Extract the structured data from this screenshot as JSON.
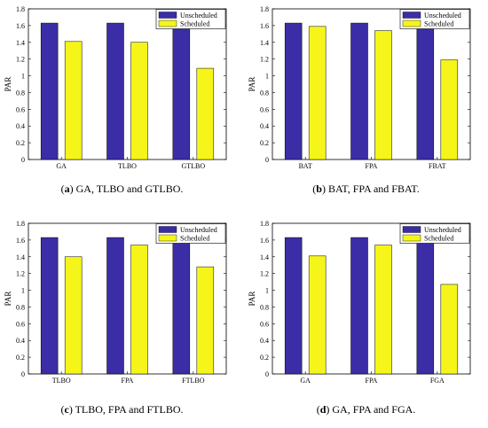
{
  "colors": {
    "unscheduled": "#3a2da6",
    "scheduled": "#f5f51a",
    "axis": "#000000"
  },
  "chart_data": [
    {
      "type": "bar",
      "ylabel": "PAR",
      "ylim": [
        0,
        1.8
      ],
      "yticks": [
        "0",
        "0.2",
        "0.4",
        "0.6",
        "0.8",
        "1",
        "1.2",
        "1.4",
        "1.6",
        "1.8"
      ],
      "categories": [
        "GA",
        "TLBO",
        "GTLBO"
      ],
      "series": [
        {
          "name": "Unscheduled",
          "values": [
            1.63,
            1.63,
            1.63
          ]
        },
        {
          "name": "Scheduled",
          "values": [
            1.41,
            1.4,
            1.09
          ]
        }
      ],
      "legend": "top-right",
      "caption_tag": "a",
      "caption_text": "GA, TLBO and GTLBO."
    },
    {
      "type": "bar",
      "ylabel": "PAR",
      "ylim": [
        0,
        1.8
      ],
      "yticks": [
        "0",
        "0.2",
        "0.4",
        "0.6",
        "0.8",
        "1",
        "1.2",
        "1.4",
        "1.6",
        "1.8"
      ],
      "categories": [
        "BAT",
        "FPA",
        "FBAT"
      ],
      "series": [
        {
          "name": "Unscheduled",
          "values": [
            1.63,
            1.63,
            1.63
          ]
        },
        {
          "name": "Scheduled",
          "values": [
            1.59,
            1.54,
            1.19
          ]
        }
      ],
      "legend": "top-right",
      "caption_tag": "b",
      "caption_text": "BAT, FPA and FBAT."
    },
    {
      "type": "bar",
      "ylabel": "PAR",
      "ylim": [
        0,
        1.8
      ],
      "yticks": [
        "0",
        "0.2",
        "0.4",
        "0.6",
        "0.8",
        "1",
        "1.2",
        "1.4",
        "1.6",
        "1.8"
      ],
      "categories": [
        "TLBO",
        "FPA",
        "FTLBO"
      ],
      "series": [
        {
          "name": "Unscheduled",
          "values": [
            1.63,
            1.63,
            1.63
          ]
        },
        {
          "name": "Scheduled",
          "values": [
            1.4,
            1.54,
            1.28
          ]
        }
      ],
      "legend": "top-right",
      "caption_tag": "c",
      "caption_text": "TLBO, FPA and FTLBO."
    },
    {
      "type": "bar",
      "ylabel": "PAR",
      "ylim": [
        0,
        1.8
      ],
      "yticks": [
        "0",
        "0.2",
        "0.4",
        "0.6",
        "0.8",
        "1",
        "1.2",
        "1.4",
        "1.6",
        "1.8"
      ],
      "categories": [
        "GA",
        "FPA",
        "FGA"
      ],
      "series": [
        {
          "name": "Unscheduled",
          "values": [
            1.63,
            1.63,
            1.63
          ]
        },
        {
          "name": "Scheduled",
          "values": [
            1.41,
            1.54,
            1.07
          ]
        }
      ],
      "legend": "top-right",
      "caption_tag": "d",
      "caption_text": "GA, FPA and FGA."
    }
  ]
}
